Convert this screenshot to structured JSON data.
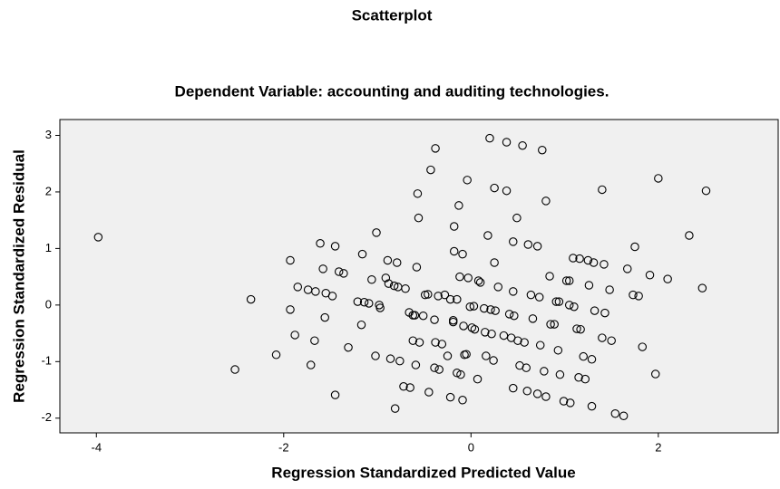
{
  "chart_data": {
    "type": "scatter",
    "title": "Scatterplot",
    "subtitle": "Dependent Variable: accounting and auditing technologies.",
    "x_label": "Regression Standardized Predicted Value",
    "y_label": "Regression Standardized Residual",
    "xlim": [
      -4.39,
      3.28
    ],
    "ylim": [
      -2.26,
      3.28
    ],
    "xticks": [
      -4,
      -2,
      0,
      2
    ],
    "yticks": [
      -2,
      -1,
      0,
      1,
      2,
      3
    ],
    "grid": false,
    "color": "#000000",
    "x": [
      -3.98,
      -2.35,
      -2.52,
      -2.08,
      -1.93,
      -1.93,
      -1.88,
      -1.85,
      -1.74,
      -1.71,
      -1.67,
      -1.66,
      -1.61,
      -1.58,
      -1.56,
      -1.55,
      -1.48,
      -1.45,
      -1.45,
      -1.41,
      -1.36,
      -1.31,
      -1.21,
      -1.17,
      -1.16,
      -1.14,
      -1.09,
      -1.06,
      -1.01,
      -1.02,
      -0.98,
      -0.97,
      -0.91,
      -0.89,
      -0.88,
      -0.86,
      -0.82,
      -0.79,
      -0.78,
      -0.76,
      -0.72,
      -0.7,
      -0.66,
      -0.65,
      -0.62,
      -0.6,
      -0.62,
      -0.59,
      -0.58,
      -0.57,
      -0.56,
      -0.55,
      -0.51,
      -0.49,
      -0.46,
      -0.45,
      -0.43,
      -0.39,
      -0.38,
      -0.38,
      -0.39,
      -0.35,
      -0.34,
      -0.31,
      -0.28,
      -0.25,
      -0.22,
      -0.22,
      -0.19,
      -0.19,
      -0.18,
      -0.18,
      -0.15,
      -0.15,
      -0.13,
      -0.12,
      -0.11,
      -0.09,
      -0.09,
      -0.08,
      -0.07,
      -0.04,
      -0.05,
      -0.03,
      -0.01,
      0.01,
      0.03,
      0.04,
      0.07,
      0.08,
      0.1,
      0.14,
      0.15,
      0.16,
      0.18,
      0.2,
      0.21,
      0.22,
      0.24,
      0.25,
      0.25,
      0.26,
      0.29,
      0.35,
      0.38,
      0.38,
      0.41,
      0.43,
      0.45,
      0.45,
      0.45,
      0.46,
      0.49,
      0.5,
      0.52,
      0.55,
      0.57,
      0.59,
      0.6,
      0.61,
      0.64,
      0.66,
      0.71,
      0.71,
      0.73,
      0.74,
      0.76,
      0.78,
      0.8,
      0.8,
      0.84,
      0.85,
      0.89,
      0.91,
      0.93,
      0.94,
      0.95,
      0.99,
      1.02,
      1.05,
      1.05,
      1.06,
      1.09,
      1.1,
      1.13,
      1.15,
      1.16,
      1.17,
      1.2,
      1.22,
      1.25,
      1.26,
      1.29,
      1.29,
      1.31,
      1.32,
      1.4,
      1.4,
      1.42,
      1.43,
      1.48,
      1.5,
      1.54,
      1.63,
      1.67,
      1.73,
      1.75,
      1.79,
      1.83,
      1.91,
      1.97,
      2.0,
      2.1,
      2.33,
      2.47,
      2.51,
      -0.81
    ],
    "values": [
      1.2,
      0.1,
      -1.14,
      -0.88,
      0.79,
      -0.08,
      -0.53,
      0.32,
      0.27,
      -1.06,
      -0.63,
      0.24,
      1.09,
      0.64,
      -0.22,
      0.21,
      0.16,
      1.04,
      -1.59,
      0.59,
      0.56,
      -0.75,
      0.06,
      -0.35,
      0.9,
      0.05,
      0.03,
      0.45,
      1.28,
      -0.9,
      0.0,
      -0.05,
      0.48,
      0.79,
      0.38,
      -0.95,
      0.34,
      0.75,
      0.32,
      -0.99,
      -1.44,
      0.29,
      -0.13,
      -1.46,
      -0.18,
      -0.18,
      -0.63,
      -1.06,
      0.67,
      1.97,
      1.54,
      -0.66,
      -0.19,
      0.18,
      0.19,
      -1.54,
      2.39,
      -0.26,
      2.77,
      -0.66,
      -1.11,
      0.16,
      -1.14,
      -0.69,
      0.18,
      -0.9,
      -1.63,
      0.1,
      -0.3,
      -0.27,
      1.39,
      0.95,
      -1.2,
      0.1,
      1.76,
      0.5,
      -1.23,
      -1.68,
      0.9,
      -0.37,
      -0.88,
      2.21,
      -0.87,
      0.48,
      -0.03,
      -0.4,
      -0.02,
      -0.43,
      -1.31,
      0.43,
      0.4,
      -0.06,
      -0.48,
      -0.9,
      1.23,
      2.95,
      -0.08,
      -0.51,
      -0.98,
      2.07,
      0.75,
      -0.1,
      0.32,
      -0.54,
      2.02,
      2.88,
      -0.16,
      -0.58,
      1.12,
      -1.47,
      0.24,
      -0.19,
      1.54,
      -0.63,
      -1.07,
      2.82,
      -0.66,
      -1.11,
      -1.52,
      1.07,
      0.18,
      -0.24,
      -1.57,
      1.04,
      0.14,
      -0.71,
      2.74,
      -1.17,
      -1.62,
      1.84,
      0.51,
      -0.34,
      -0.34,
      0.06,
      -0.8,
      0.06,
      -1.23,
      -1.7,
      0.43,
      0.0,
      0.43,
      -1.73,
      0.83,
      -0.03,
      -0.42,
      -1.28,
      0.82,
      -0.43,
      -0.91,
      -1.31,
      0.79,
      0.35,
      -0.96,
      -1.79,
      0.75,
      -0.1,
      -0.58,
      2.04,
      0.72,
      -0.14,
      0.27,
      -0.63,
      -1.92,
      -1.96,
      0.64,
      0.18,
      1.03,
      0.16,
      -0.74,
      0.53,
      -1.22,
      2.24,
      0.46,
      1.23,
      0.3,
      2.02,
      -1.83
    ]
  }
}
